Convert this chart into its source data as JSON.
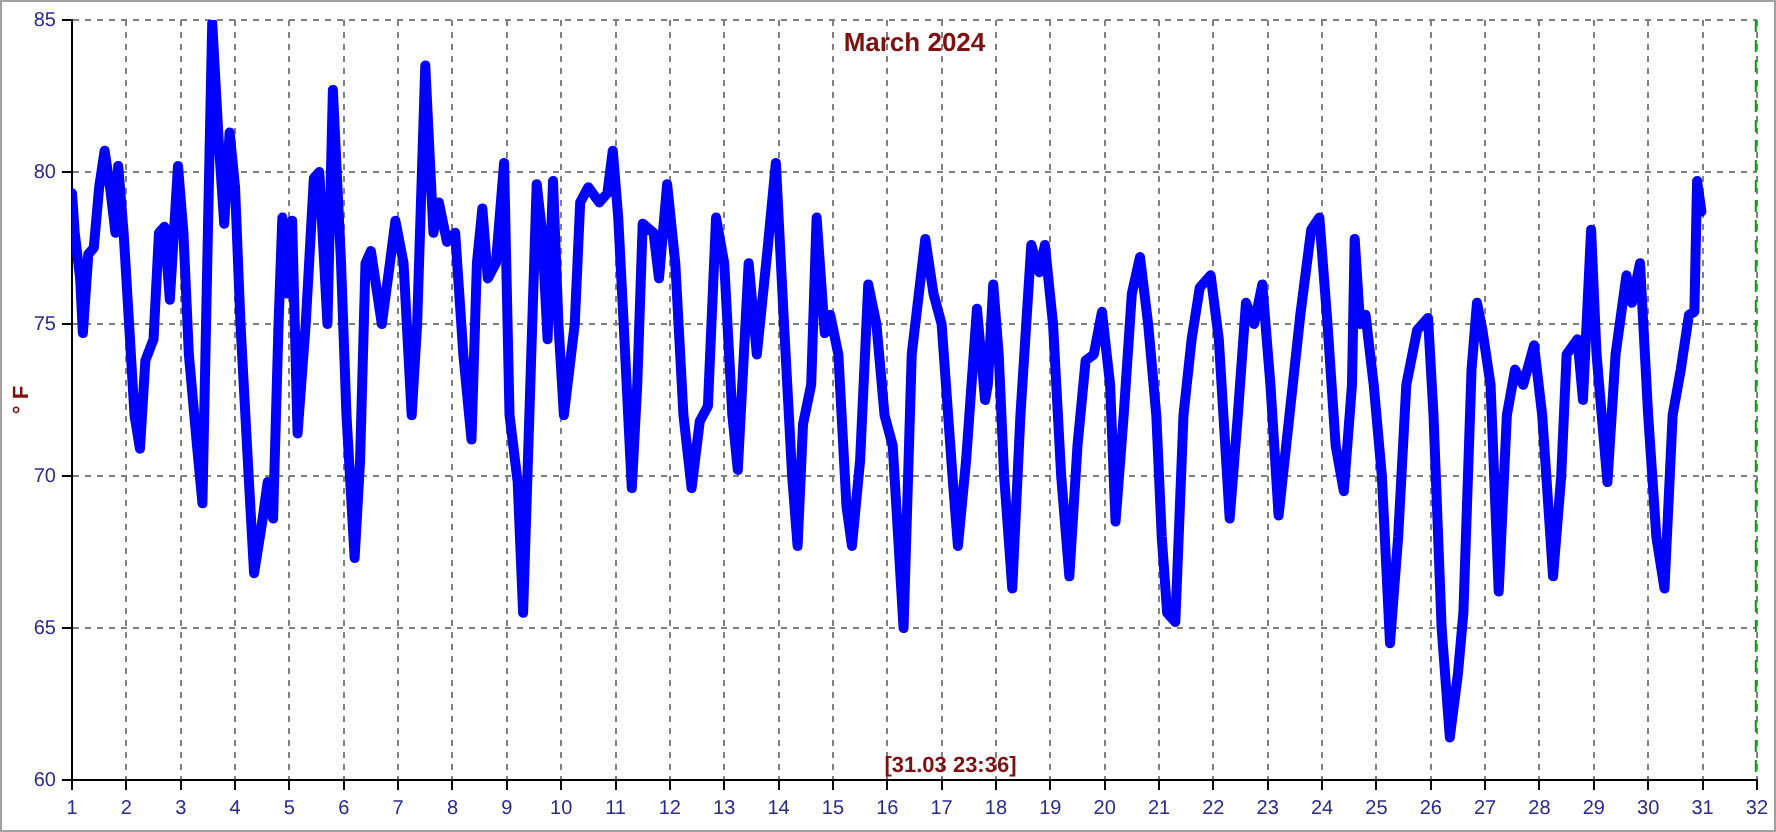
{
  "chart_data": {
    "type": "line",
    "title": "March 2024",
    "ylabel": "° F",
    "annotations": [
      "[31.03 23:36]"
    ],
    "x": [
      1.0,
      1.05,
      1.15,
      1.2,
      1.3,
      1.4,
      1.5,
      1.6,
      1.7,
      1.8,
      1.85,
      1.95,
      2.05,
      2.15,
      2.25,
      2.35,
      2.5,
      2.6,
      2.7,
      2.8,
      2.95,
      3.05,
      3.15,
      3.3,
      3.4,
      3.5,
      3.58,
      3.7,
      3.8,
      3.9,
      4.0,
      4.1,
      4.25,
      4.35,
      4.5,
      4.6,
      4.7,
      4.8,
      4.87,
      4.95,
      5.05,
      5.15,
      5.3,
      5.45,
      5.55,
      5.7,
      5.8,
      5.95,
      6.05,
      6.2,
      6.3,
      6.4,
      6.5,
      6.7,
      6.85,
      6.95,
      7.1,
      7.25,
      7.35,
      7.5,
      7.65,
      7.75,
      7.9,
      8.05,
      8.2,
      8.35,
      8.45,
      8.55,
      8.65,
      8.8,
      8.95,
      9.05,
      9.2,
      9.3,
      9.45,
      9.55,
      9.65,
      9.75,
      9.85,
      9.95,
      10.05,
      10.25,
      10.35,
      10.5,
      10.7,
      10.85,
      10.95,
      11.05,
      11.15,
      11.3,
      11.4,
      11.5,
      11.7,
      11.8,
      11.95,
      12.1,
      12.25,
      12.4,
      12.55,
      12.7,
      12.85,
      13.0,
      13.15,
      13.25,
      13.45,
      13.6,
      13.8,
      13.95,
      14.1,
      14.25,
      14.35,
      14.45,
      14.6,
      14.7,
      14.85,
      14.95,
      15.1,
      15.25,
      15.35,
      15.5,
      15.65,
      15.8,
      15.95,
      16.1,
      16.3,
      16.45,
      16.7,
      16.85,
      17.0,
      17.2,
      17.3,
      17.45,
      17.65,
      17.8,
      17.85,
      17.95,
      18.05,
      18.15,
      18.3,
      18.45,
      18.65,
      18.8,
      18.9,
      19.05,
      19.2,
      19.35,
      19.5,
      19.65,
      19.8,
      19.95,
      20.1,
      20.2,
      20.35,
      20.5,
      20.65,
      20.8,
      20.95,
      21.05,
      21.15,
      21.3,
      21.45,
      21.6,
      21.75,
      21.95,
      22.1,
      22.3,
      22.45,
      22.6,
      22.75,
      22.9,
      23.05,
      23.2,
      23.4,
      23.6,
      23.8,
      23.95,
      24.1,
      24.25,
      24.4,
      24.55,
      24.6,
      24.7,
      24.8,
      24.95,
      25.1,
      25.25,
      25.4,
      25.55,
      25.75,
      25.95,
      26.05,
      26.2,
      26.35,
      26.5,
      26.6,
      26.75,
      26.85,
      26.95,
      27.1,
      27.25,
      27.4,
      27.55,
      27.7,
      27.9,
      28.05,
      28.25,
      28.4,
      28.5,
      28.7,
      28.8,
      28.95,
      29.05,
      29.25,
      29.4,
      29.6,
      29.7,
      29.85,
      30.0,
      30.15,
      30.3,
      30.45,
      30.6,
      30.75,
      30.85,
      30.9,
      30.98
    ],
    "series": [
      {
        "color": "#0000ff",
        "values": [
          79.3,
          78,
          76.5,
          74.7,
          77.3,
          77.5,
          79.5,
          80.7,
          79.5,
          78,
          80.2,
          78,
          75,
          72,
          70.9,
          73.8,
          74.5,
          78,
          78.2,
          75.8,
          80.2,
          78,
          74,
          71,
          69.1,
          78,
          84.9,
          81,
          78.3,
          81.3,
          79.5,
          75,
          70,
          66.8,
          68.5,
          69.8,
          68.6,
          75,
          78.5,
          76,
          78.4,
          71.4,
          75,
          79.8,
          80,
          75,
          82.7,
          77,
          72,
          67.3,
          70.5,
          77,
          77.4,
          75,
          77,
          78.4,
          77,
          72,
          75,
          83.5,
          78,
          79,
          77.7,
          78,
          74,
          71.2,
          77,
          78.8,
          76.5,
          77,
          80.3,
          72,
          69.8,
          65.5,
          74,
          79.6,
          78,
          74.5,
          79.7,
          75,
          72,
          75,
          79,
          79.5,
          79,
          79.3,
          80.7,
          78.5,
          75,
          69.6,
          73,
          78.3,
          78,
          76.5,
          79.6,
          77,
          72,
          69.6,
          71.8,
          72.3,
          78.5,
          77,
          72,
          70.2,
          77,
          74,
          77.5,
          80.3,
          75,
          70,
          67.7,
          71.7,
          73,
          78.5,
          74.7,
          75.3,
          74,
          69,
          67.7,
          70.5,
          76.3,
          75,
          72,
          71,
          65,
          74,
          77.8,
          76,
          75,
          70,
          67.7,
          70.5,
          75.5,
          72.5,
          73,
          76.3,
          74,
          70,
          66.3,
          72,
          77.6,
          76.7,
          77.6,
          75,
          70,
          66.7,
          71,
          73.8,
          74,
          75.4,
          73,
          68.5,
          72,
          76,
          77.2,
          75,
          72,
          68,
          65.5,
          65.2,
          72,
          74.5,
          76.2,
          76.6,
          74.5,
          68.6,
          72,
          75.7,
          75,
          76.3,
          73,
          68.7,
          72,
          75.3,
          78.1,
          78.5,
          75,
          71,
          69.5,
          73,
          77.8,
          75,
          75.3,
          73,
          70,
          64.5,
          68,
          73,
          74.8,
          75.2,
          72,
          65,
          61.4,
          63.5,
          65.5,
          73.5,
          75.7,
          74.8,
          73,
          66.2,
          72,
          73.5,
          73,
          74.3,
          72,
          66.7,
          70,
          74,
          74.5,
          72.5,
          78.1,
          74,
          69.8,
          74,
          76.6,
          75.7,
          77,
          72,
          68,
          66.3,
          72,
          73.5,
          75.3,
          75.4,
          79.7,
          78.7
        ]
      }
    ],
    "xlim": [
      1,
      32
    ],
    "xticks": [
      1,
      2,
      3,
      4,
      5,
      6,
      7,
      8,
      9,
      10,
      11,
      12,
      13,
      14,
      15,
      16,
      17,
      18,
      19,
      20,
      21,
      22,
      23,
      24,
      25,
      26,
      27,
      28,
      29,
      30,
      31,
      32
    ],
    "ylim": [
      60,
      85
    ],
    "yticks": [
      60,
      65,
      70,
      75,
      80,
      85
    ],
    "ref_lines": [
      {
        "axis": "x",
        "value": 31.98,
        "color": "#00a000",
        "line_style": "dashed"
      }
    ],
    "grid": true,
    "marker": "none",
    "line_style": "solid",
    "legend": false
  }
}
